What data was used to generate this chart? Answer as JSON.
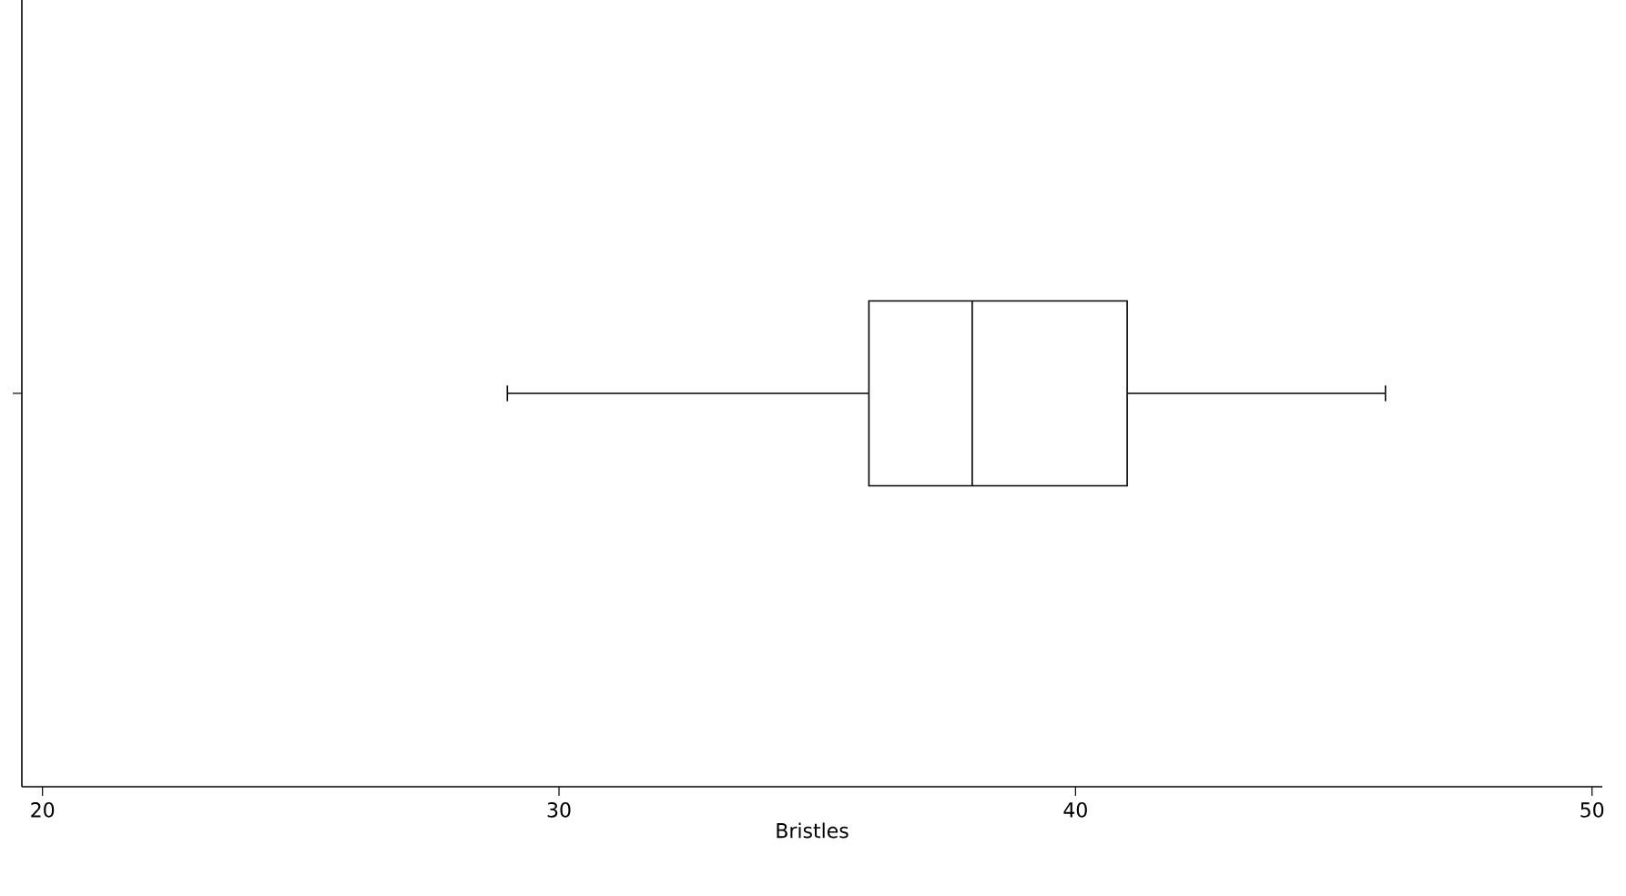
{
  "chart_data": {
    "type": "box",
    "orientation": "horizontal",
    "categories": [
      null
    ],
    "boxes": [
      {
        "low": 29,
        "q1": 36,
        "median": 38,
        "q3": 41,
        "high": 46
      }
    ],
    "xlim": [
      19.6,
      50.2
    ],
    "xticks": [
      20,
      30,
      40,
      50
    ],
    "xlabel": "Bristles",
    "tick_labels": "x"
  }
}
